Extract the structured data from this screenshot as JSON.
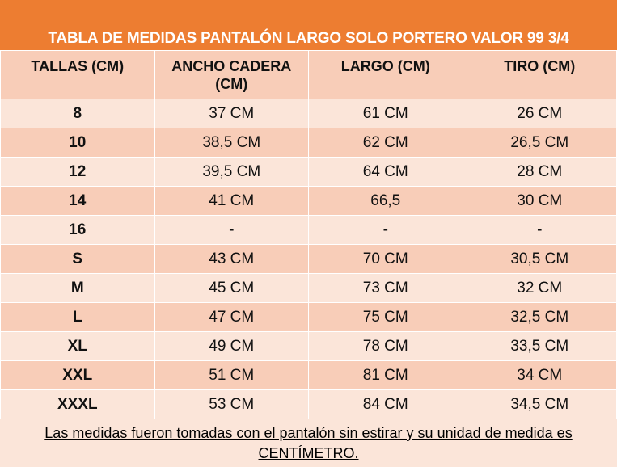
{
  "title": "TABLA DE MEDIDAS PANTALÓN LARGO SOLO PORTERO VALOR 99 3/4",
  "table": {
    "columns": [
      "TALLAS (CM)",
      "ANCHO CADERA (CM)",
      "LARGO (CM)",
      "TIRO (CM)"
    ],
    "rows": [
      [
        "8",
        "37 CM",
        "61 CM",
        "26 CM"
      ],
      [
        "10",
        "38,5 CM",
        "62 CM",
        "26,5 CM"
      ],
      [
        "12",
        "39,5 CM",
        "64 CM",
        "28 CM"
      ],
      [
        "14",
        "41 CM",
        "66,5",
        "30 CM"
      ],
      [
        "16",
        "-",
        "-",
        "-"
      ],
      [
        "S",
        "43 CM",
        "70 CM",
        "30,5 CM"
      ],
      [
        "M",
        "45 CM",
        "73 CM",
        "32 CM"
      ],
      [
        "L",
        "47 CM",
        "75 CM",
        "32,5 CM"
      ],
      [
        "XL",
        "49 CM",
        "78 CM",
        "33,5 CM"
      ],
      [
        "XXL",
        "51 CM",
        "81 CM",
        "34 CM"
      ],
      [
        "XXXL",
        "53 CM",
        "84 CM",
        "34,5 CM"
      ]
    ]
  },
  "footer": "Las medidas fueron tomadas con el pantalón sin estirar y su unidad de medida es CENTÍMETRO."
}
